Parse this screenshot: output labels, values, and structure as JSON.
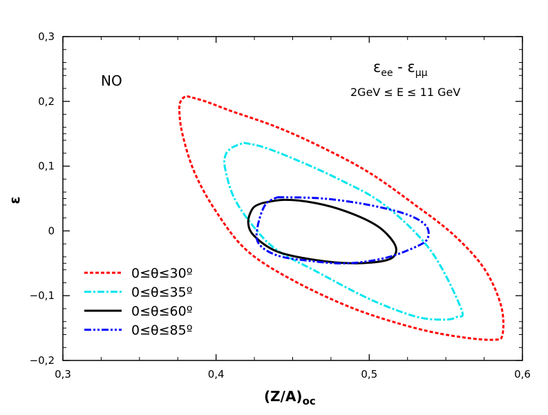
{
  "chart_data": {
    "type": "line",
    "title": "",
    "xlabel_main": "(Z/A)",
    "xlabel_sub": "oc",
    "ylabel": "ε",
    "xlim": [
      0.3,
      0.6
    ],
    "ylim": [
      -0.2,
      0.3
    ],
    "x_ticks": [
      "0,3",
      "0,4",
      "0,5",
      "0,6"
    ],
    "y_ticks": [
      "−0,2",
      "−0,1",
      "0",
      "0,1",
      "0,2",
      "0,3"
    ],
    "grid": false,
    "legend_position": "bottom-left",
    "annotations": {
      "ordering": "NO",
      "channel_main_1": "ε",
      "channel_sub_1": "ee",
      "channel_dash": " - ",
      "channel_main_2": "ε",
      "channel_sub_2": "μμ",
      "energy_range": "2GeV ≤ E ≤ 11 GeV"
    },
    "series": [
      {
        "name": "0≤θ≤30º",
        "color": "#ff0000",
        "dash": "dashed",
        "x": [
          0.381,
          0.393,
          0.41,
          0.44,
          0.47,
          0.5,
          0.53,
          0.555,
          0.575,
          0.586,
          0.587,
          0.581,
          0.56,
          0.53,
          0.49,
          0.45,
          0.42,
          0.4,
          0.386,
          0.378,
          0.376,
          0.378,
          0.381
        ],
        "y": [
          0.208,
          0.2,
          0.185,
          0.16,
          0.128,
          0.09,
          0.04,
          -0.006,
          -0.058,
          -0.115,
          -0.16,
          -0.168,
          -0.164,
          -0.15,
          -0.12,
          -0.076,
          -0.03,
          0.03,
          0.09,
          0.15,
          0.19,
          0.204,
          0.208
        ]
      },
      {
        "name": "0≤θ≤35º",
        "color": "#00e5ee",
        "dash": "dashdot",
        "x": [
          0.418,
          0.43,
          0.45,
          0.48,
          0.51,
          0.54,
          0.56,
          0.557,
          0.548,
          0.53,
          0.5,
          0.465,
          0.44,
          0.425,
          0.412,
          0.406,
          0.406,
          0.41,
          0.418
        ],
        "y": [
          0.136,
          0.13,
          0.112,
          0.08,
          0.04,
          -0.03,
          -0.12,
          -0.133,
          -0.137,
          -0.132,
          -0.105,
          -0.062,
          -0.03,
          0.005,
          0.05,
          0.095,
          0.116,
          0.128,
          0.136
        ]
      },
      {
        "name": "0≤θ≤60º",
        "color": "#000000",
        "dash": "solid",
        "x": [
          0.43,
          0.445,
          0.465,
          0.485,
          0.505,
          0.516,
          0.517,
          0.51,
          0.49,
          0.465,
          0.44,
          0.425,
          0.421,
          0.424,
          0.43
        ],
        "y": [
          0.043,
          0.048,
          0.043,
          0.03,
          0.008,
          -0.018,
          -0.036,
          -0.046,
          -0.05,
          -0.045,
          -0.032,
          -0.008,
          0.013,
          0.035,
          0.043
        ]
      },
      {
        "name": "0≤θ≤85º",
        "color": "#0000ff",
        "dash": "dashdotdot",
        "x": [
          0.44,
          0.47,
          0.5,
          0.525,
          0.537,
          0.538,
          0.53,
          0.51,
          0.485,
          0.46,
          0.44,
          0.428,
          0.427,
          0.432,
          0.44
        ],
        "y": [
          0.052,
          0.05,
          0.04,
          0.025,
          0.008,
          -0.012,
          -0.025,
          -0.042,
          -0.05,
          -0.046,
          -0.038,
          -0.02,
          0.005,
          0.04,
          0.052
        ]
      }
    ]
  }
}
